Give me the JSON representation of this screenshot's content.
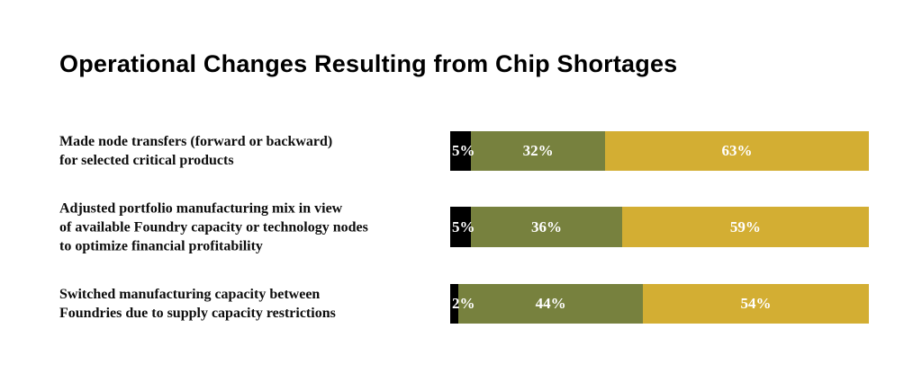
{
  "title": "Operational Changes Resulting from Chip Shortages",
  "colors": {
    "black": "#000000",
    "olive": "#77813E",
    "gold": "#D3AE33",
    "value_label_text": "#FFFFFF",
    "category_label_text": "#0D0D0D",
    "title_text": "#000000",
    "background": "#FFFFFF"
  },
  "rows": [
    {
      "label_lines": [
        "Made node transfers (forward or backward)",
        "for selected critical products"
      ],
      "segments": [
        {
          "value": 5,
          "label": "5%",
          "color_key": "black"
        },
        {
          "value": 32,
          "label": "32%",
          "color_key": "olive"
        },
        {
          "value": 63,
          "label": "63%",
          "color_key": "gold"
        }
      ]
    },
    {
      "label_lines": [
        "Adjusted portfolio manufacturing mix in view",
        "of available Foundry capacity or technology nodes",
        "to optimize financial profitability"
      ],
      "segments": [
        {
          "value": 5,
          "label": "5%",
          "color_key": "black"
        },
        {
          "value": 36,
          "label": "36%",
          "color_key": "olive"
        },
        {
          "value": 59,
          "label": "59%",
          "color_key": "gold"
        }
      ]
    },
    {
      "label_lines": [
        "Switched manufacturing capacity between",
        "Foundries due to supply capacity restrictions"
      ],
      "segments": [
        {
          "value": 2,
          "label": "2%",
          "color_key": "black"
        },
        {
          "value": 44,
          "label": "44%",
          "color_key": "olive"
        },
        {
          "value": 54,
          "label": "54%",
          "color_key": "gold"
        }
      ]
    }
  ],
  "chart_data": {
    "type": "bar",
    "orientation": "horizontal",
    "stacked": true,
    "title": "Operational Changes Resulting from Chip Shortages",
    "categories": [
      "Made node transfers (forward or backward) for selected critical products",
      "Adjusted portfolio manufacturing mix in view of available Foundry capacity or technology nodes to optimize financial profitability",
      "Switched manufacturing capacity between Foundries due to supply capacity restrictions"
    ],
    "series": [
      {
        "name": "black-segment",
        "color": "#000000",
        "values": [
          5,
          5,
          2
        ]
      },
      {
        "name": "olive-segment",
        "color": "#77813E",
        "values": [
          32,
          36,
          44
        ]
      },
      {
        "name": "gold-segment",
        "color": "#D3AE33",
        "values": [
          63,
          59,
          54
        ]
      }
    ],
    "unit": "%",
    "xlim": [
      0,
      100
    ],
    "grid": false,
    "axes_visible": false,
    "legend": "none",
    "value_labels": "inside segments, white serif text"
  }
}
